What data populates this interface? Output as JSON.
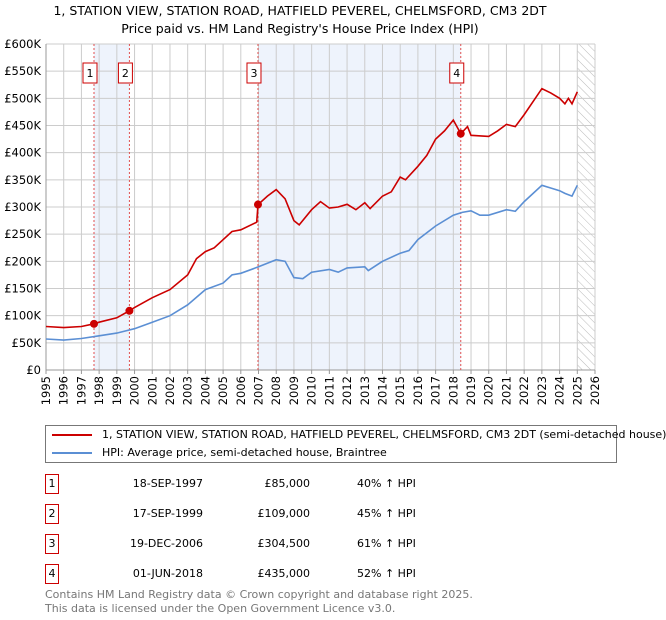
{
  "title_line1": "1, STATION VIEW, STATION ROAD, HATFIELD PEVEREL, CHELMSFORD, CM3 2DT",
  "title_line2": "Price paid vs. HM Land Registry's House Price Index (HPI)",
  "chart_data": {
    "type": "line",
    "xlim": [
      1995,
      2026
    ],
    "ylim": [
      0,
      600000
    ],
    "x_ticks": [
      1995,
      1996,
      1997,
      1998,
      1999,
      2000,
      2001,
      2002,
      2003,
      2004,
      2005,
      2006,
      2007,
      2008,
      2009,
      2010,
      2011,
      2012,
      2013,
      2014,
      2015,
      2016,
      2017,
      2018,
      2019,
      2020,
      2021,
      2022,
      2023,
      2024,
      2025,
      2026
    ],
    "y_ticks": [
      0,
      50000,
      100000,
      150000,
      200000,
      250000,
      300000,
      350000,
      400000,
      450000,
      500000,
      550000,
      600000
    ],
    "y_tick_labels": [
      "£0",
      "£50K",
      "£100K",
      "£150K",
      "£200K",
      "£250K",
      "£300K",
      "£350K",
      "£400K",
      "£450K",
      "£500K",
      "£550K",
      "£600K"
    ],
    "grid": true,
    "forecast_hatch_from": 2025.0,
    "colors": {
      "property": "#cc0000",
      "hpi": "#5b8fd4",
      "shade": "#eef3fc"
    },
    "series": [
      {
        "name": "1, STATION VIEW, STATION ROAD, HATFIELD PEVEREL, CHELMSFORD, CM3 2DT (semi-detached house)",
        "x": [
          1995,
          1996,
          1997,
          1997.71,
          1998,
          1999,
          1999.71,
          2000,
          2001,
          2002,
          2003,
          2003.5,
          2004,
          2004.5,
          2005.5,
          2006,
          2006.9,
          2006.97,
          2007.5,
          2008,
          2008.5,
          2009,
          2009.3,
          2010,
          2010.5,
          2011,
          2011.5,
          2012,
          2012.5,
          2013,
          2013.3,
          2014,
          2014.5,
          2015,
          2015.3,
          2016,
          2016.5,
          2017,
          2017.5,
          2018,
          2018.42,
          2018.8,
          2019,
          2020,
          2020.5,
          2021,
          2021.5,
          2022,
          2023,
          2023.5,
          2024,
          2024.3,
          2024.5,
          2024.7,
          2025
        ],
        "y": [
          80000,
          78000,
          80000,
          85000,
          88000,
          96000,
          109000,
          115000,
          133000,
          148000,
          175000,
          205000,
          218000,
          225000,
          255000,
          258000,
          272000,
          304500,
          320000,
          332000,
          315000,
          275000,
          267000,
          295000,
          310000,
          298000,
          300000,
          305000,
          295000,
          308000,
          297000,
          320000,
          328000,
          355000,
          350000,
          375000,
          395000,
          425000,
          440000,
          460000,
          435000,
          448000,
          432000,
          430000,
          440000,
          452000,
          448000,
          470000,
          518000,
          510000,
          500000,
          490000,
          500000,
          490000,
          512000
        ]
      },
      {
        "name": "HPI: Average price, semi-detached house, Braintree",
        "x": [
          1995,
          1996,
          1997,
          1998,
          1999,
          2000,
          2001,
          2002,
          2003,
          2004,
          2005,
          2005.5,
          2006,
          2007,
          2008,
          2008.5,
          2009,
          2009.5,
          2010,
          2011,
          2011.5,
          2012,
          2013,
          2013.2,
          2014,
          2015,
          2015.5,
          2016,
          2017,
          2018,
          2018.5,
          2019,
          2019.5,
          2020,
          2021,
          2021.5,
          2022,
          2023,
          2023.5,
          2024,
          2024.3,
          2024.7,
          2025
        ],
        "y": [
          57000,
          55000,
          58000,
          63000,
          68000,
          76000,
          88000,
          100000,
          120000,
          148000,
          160000,
          175000,
          178000,
          190000,
          203000,
          200000,
          170000,
          168000,
          180000,
          185000,
          180000,
          188000,
          190000,
          183000,
          200000,
          215000,
          220000,
          240000,
          265000,
          285000,
          290000,
          293000,
          285000,
          285000,
          295000,
          292000,
          310000,
          340000,
          335000,
          330000,
          325000,
          320000,
          340000
        ]
      }
    ],
    "sales": [
      {
        "label": "1",
        "x": 1997.71,
        "y": 85000
      },
      {
        "label": "2",
        "x": 1999.71,
        "y": 109000
      },
      {
        "label": "3",
        "x": 2006.97,
        "y": 304500
      },
      {
        "label": "4",
        "x": 2018.42,
        "y": 435000
      }
    ]
  },
  "legend": [
    {
      "label": "1, STATION VIEW, STATION ROAD, HATFIELD PEVEREL, CHELMSFORD, CM3 2DT (semi-detached house)"
    },
    {
      "label": "HPI: Average price, semi-detached house, Braintree"
    }
  ],
  "transactions": [
    {
      "num": "1",
      "date": "18-SEP-1997",
      "price": "£85,000",
      "hpi": "40% ↑ HPI"
    },
    {
      "num": "2",
      "date": "17-SEP-1999",
      "price": "£109,000",
      "hpi": "45% ↑ HPI"
    },
    {
      "num": "3",
      "date": "19-DEC-2006",
      "price": "£304,500",
      "hpi": "61% ↑ HPI"
    },
    {
      "num": "4",
      "date": "01-JUN-2018",
      "price": "£435,000",
      "hpi": "52% ↑ HPI"
    }
  ],
  "footer_line1": "Contains HM Land Registry data © Crown copyright and database right 2025.",
  "footer_line2": "This data is licensed under the Open Government Licence v3.0."
}
